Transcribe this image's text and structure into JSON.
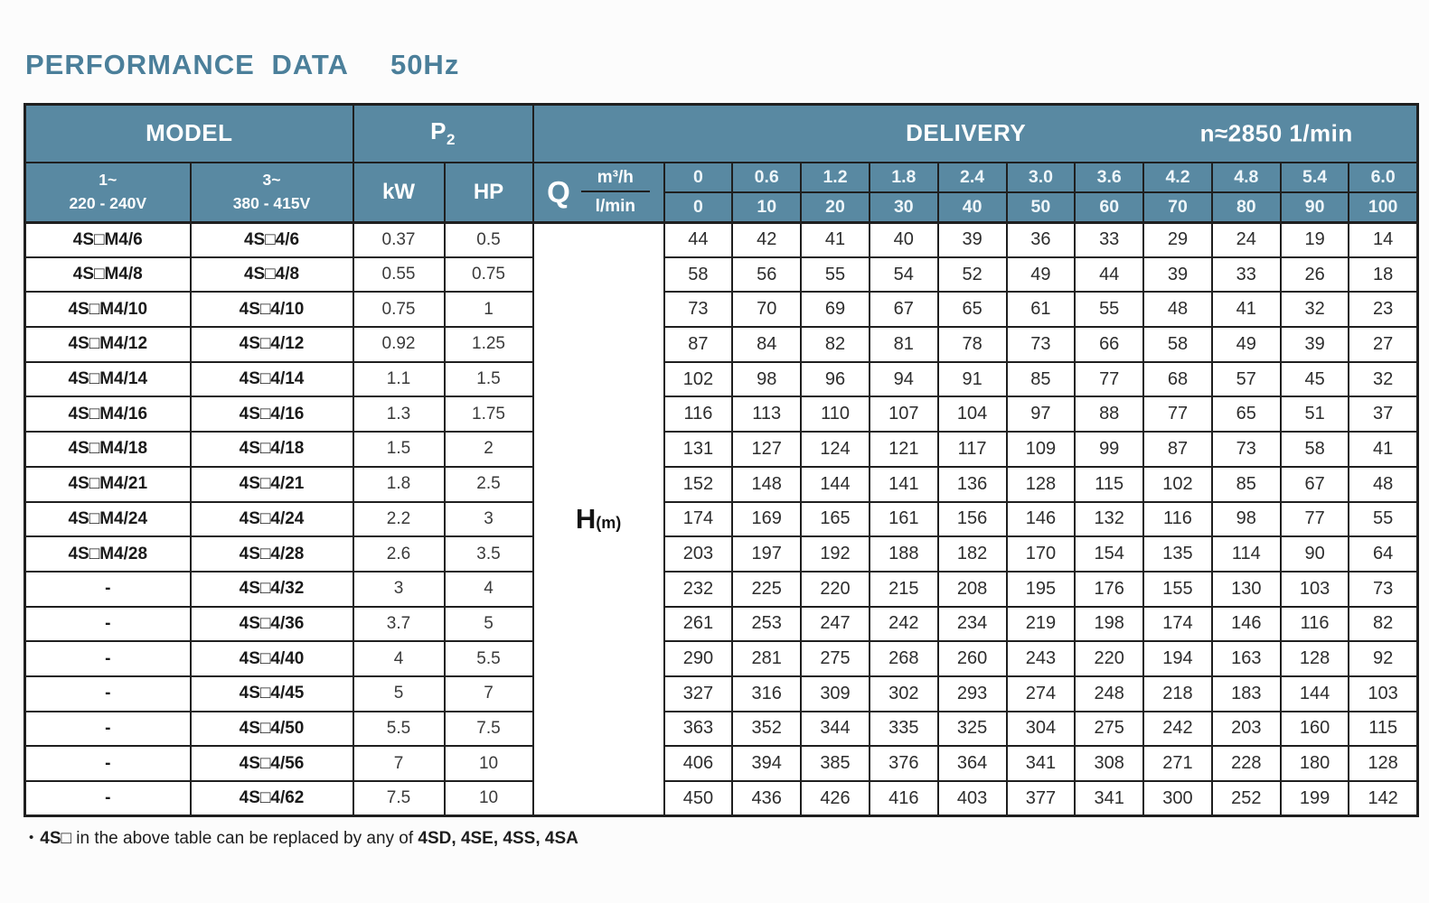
{
  "title": {
    "main": "PERFORMANCE DATA",
    "freq": "50Hz"
  },
  "colors": {
    "page_bg": "#fcfcfc",
    "header_bg": "#5989a2",
    "header_text": "#ffffff",
    "header_values_text": "#eef6fa",
    "title_text": "#4b7f9a",
    "border": "#1f1f1f"
  },
  "table": {
    "header": {
      "model": "MODEL",
      "p2_label": "P",
      "p2_sub": "2",
      "delivery": "DELIVERY",
      "speed": "n≈2850 1/min",
      "phase1_line1": "1~",
      "phase1_line2": "220 - 240V",
      "phase3_line1": "3~",
      "phase3_line2": "380 - 415V",
      "kw": "kW",
      "hp": "HP",
      "q": "Q",
      "m3h": "m³/h",
      "lmin": "l/min",
      "m3h_values": [
        "0",
        "0.6",
        "1.2",
        "1.8",
        "2.4",
        "3.0",
        "3.6",
        "4.2",
        "4.8",
        "5.4",
        "6.0"
      ],
      "lmin_values": [
        "0",
        "10",
        "20",
        "30",
        "40",
        "50",
        "60",
        "70",
        "80",
        "90",
        "100"
      ]
    },
    "h_label": {
      "main": "H",
      "unit": "(m)"
    },
    "rows": [
      {
        "model_1ph": "4S□M4/6",
        "model_3ph": "4S□4/6",
        "kw": "0.37",
        "hp": "0.5",
        "values": [
          44,
          42,
          41,
          40,
          39,
          36,
          33,
          29,
          24,
          19,
          14
        ]
      },
      {
        "model_1ph": "4S□M4/8",
        "model_3ph": "4S□4/8",
        "kw": "0.55",
        "hp": "0.75",
        "values": [
          58,
          56,
          55,
          54,
          52,
          49,
          44,
          39,
          33,
          26,
          18
        ]
      },
      {
        "model_1ph": "4S□M4/10",
        "model_3ph": "4S□4/10",
        "kw": "0.75",
        "hp": "1",
        "values": [
          73,
          70,
          69,
          67,
          65,
          61,
          55,
          48,
          41,
          32,
          23
        ]
      },
      {
        "model_1ph": "4S□M4/12",
        "model_3ph": "4S□4/12",
        "kw": "0.92",
        "hp": "1.25",
        "values": [
          87,
          84,
          82,
          81,
          78,
          73,
          66,
          58,
          49,
          39,
          27
        ]
      },
      {
        "model_1ph": "4S□M4/14",
        "model_3ph": "4S□4/14",
        "kw": "1.1",
        "hp": "1.5",
        "values": [
          102,
          98,
          96,
          94,
          91,
          85,
          77,
          68,
          57,
          45,
          32
        ]
      },
      {
        "model_1ph": "4S□M4/16",
        "model_3ph": "4S□4/16",
        "kw": "1.3",
        "hp": "1.75",
        "values": [
          116,
          113,
          110,
          107,
          104,
          97,
          88,
          77,
          65,
          51,
          37
        ]
      },
      {
        "model_1ph": "4S□M4/18",
        "model_3ph": "4S□4/18",
        "kw": "1.5",
        "hp": "2",
        "values": [
          131,
          127,
          124,
          121,
          117,
          109,
          99,
          87,
          73,
          58,
          41
        ]
      },
      {
        "model_1ph": "4S□M4/21",
        "model_3ph": "4S□4/21",
        "kw": "1.8",
        "hp": "2.5",
        "values": [
          152,
          148,
          144,
          141,
          136,
          128,
          115,
          102,
          85,
          67,
          48
        ]
      },
      {
        "model_1ph": "4S□M4/24",
        "model_3ph": "4S□4/24",
        "kw": "2.2",
        "hp": "3",
        "values": [
          174,
          169,
          165,
          161,
          156,
          146,
          132,
          116,
          98,
          77,
          55
        ]
      },
      {
        "model_1ph": "4S□M4/28",
        "model_3ph": "4S□4/28",
        "kw": "2.6",
        "hp": "3.5",
        "values": [
          203,
          197,
          192,
          188,
          182,
          170,
          154,
          135,
          114,
          90,
          64
        ]
      },
      {
        "model_1ph": "-",
        "model_3ph": "4S□4/32",
        "kw": "3",
        "hp": "4",
        "values": [
          232,
          225,
          220,
          215,
          208,
          195,
          176,
          155,
          130,
          103,
          73
        ]
      },
      {
        "model_1ph": "-",
        "model_3ph": "4S□4/36",
        "kw": "3.7",
        "hp": "5",
        "values": [
          261,
          253,
          247,
          242,
          234,
          219,
          198,
          174,
          146,
          116,
          82
        ]
      },
      {
        "model_1ph": "-",
        "model_3ph": "4S□4/40",
        "kw": "4",
        "hp": "5.5",
        "values": [
          290,
          281,
          275,
          268,
          260,
          243,
          220,
          194,
          163,
          128,
          92
        ]
      },
      {
        "model_1ph": "-",
        "model_3ph": "4S□4/45",
        "kw": "5",
        "hp": "7",
        "values": [
          327,
          316,
          309,
          302,
          293,
          274,
          248,
          218,
          183,
          144,
          103
        ]
      },
      {
        "model_1ph": "-",
        "model_3ph": "4S□4/50",
        "kw": "5.5",
        "hp": "7.5",
        "values": [
          363,
          352,
          344,
          335,
          325,
          304,
          275,
          242,
          203,
          160,
          115
        ]
      },
      {
        "model_1ph": "-",
        "model_3ph": "4S□4/56",
        "kw": "7",
        "hp": "10",
        "values": [
          406,
          394,
          385,
          376,
          364,
          341,
          308,
          271,
          228,
          180,
          128
        ]
      },
      {
        "model_1ph": "-",
        "model_3ph": "4S□4/62",
        "kw": "7.5",
        "hp": "10",
        "values": [
          450,
          436,
          426,
          416,
          403,
          377,
          341,
          300,
          252,
          199,
          142
        ]
      }
    ]
  },
  "footnote": {
    "bullet": "•",
    "prefix": "4S□",
    "middle": " in the above table can be replaced by any of ",
    "models": "4SD, 4SE, 4SS, 4SA"
  }
}
